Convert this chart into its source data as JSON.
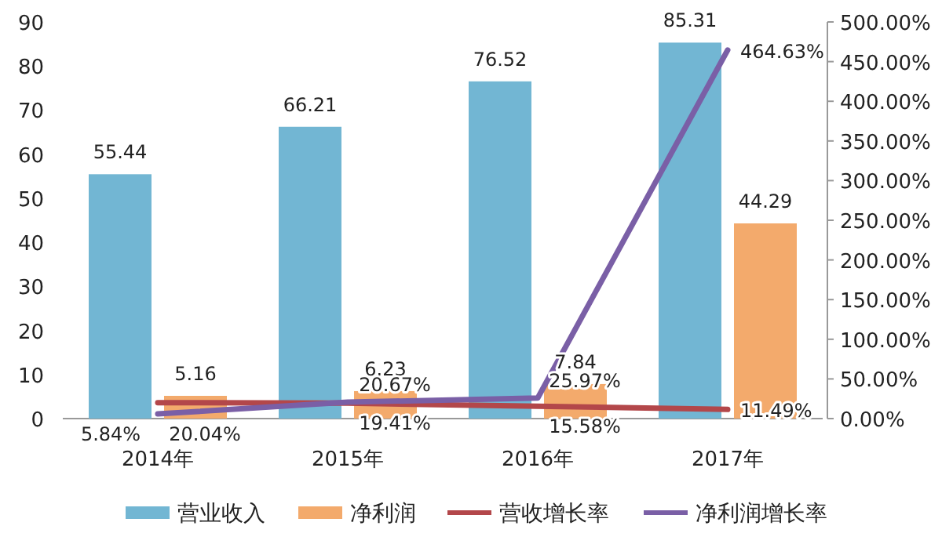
{
  "chart_data": {
    "type": "bar",
    "categories": [
      "2014年",
      "2015年",
      "2016年",
      "2017年"
    ],
    "series": [
      {
        "name": "营业收入",
        "color": "#72b6d3",
        "values": [
          55.44,
          66.21,
          76.52,
          85.31
        ]
      },
      {
        "name": "净利润",
        "color": "#f3aa6c",
        "values": [
          5.16,
          6.23,
          7.84,
          44.29
        ]
      },
      {
        "name": "营收增长率",
        "type": "line",
        "axis": "y2",
        "color": "#b3474a",
        "values": [
          20.04,
          19.41,
          15.58,
          11.49
        ],
        "value_labels": [
          "20.04%",
          "19.41%",
          "15.58%",
          "11.49%"
        ]
      },
      {
        "name": "净利润增长率",
        "type": "line",
        "axis": "y2",
        "color": "#7a5fa6",
        "values": [
          5.84,
          20.67,
          25.97,
          464.63
        ],
        "value_labels": [
          "5.84%",
          "20.67%",
          "25.97%",
          "464.63%"
        ]
      }
    ],
    "data_labels": true,
    "ylim": [
      0,
      90
    ],
    "yticks": [
      0,
      10,
      20,
      30,
      40,
      50,
      60,
      70,
      80,
      90
    ],
    "y2lim": [
      0,
      500
    ],
    "y2ticks": [
      {
        "value": 0,
        "label": "0.00%"
      },
      {
        "value": 50,
        "label": "50.00%"
      },
      {
        "value": 100,
        "label": "100.00%"
      },
      {
        "value": 150,
        "label": "150.00%"
      },
      {
        "value": 200,
        "label": "200.00%"
      },
      {
        "value": 250,
        "label": "250.00%"
      },
      {
        "value": 300,
        "label": "300.00%"
      },
      {
        "value": 350,
        "label": "350.00%"
      },
      {
        "value": 400,
        "label": "400.00%"
      },
      {
        "value": 450,
        "label": "450.00%"
      },
      {
        "value": 500,
        "label": "500.00%"
      }
    ],
    "grid": false,
    "legend": "bottom",
    "line_style": "solid",
    "marker": "none"
  }
}
